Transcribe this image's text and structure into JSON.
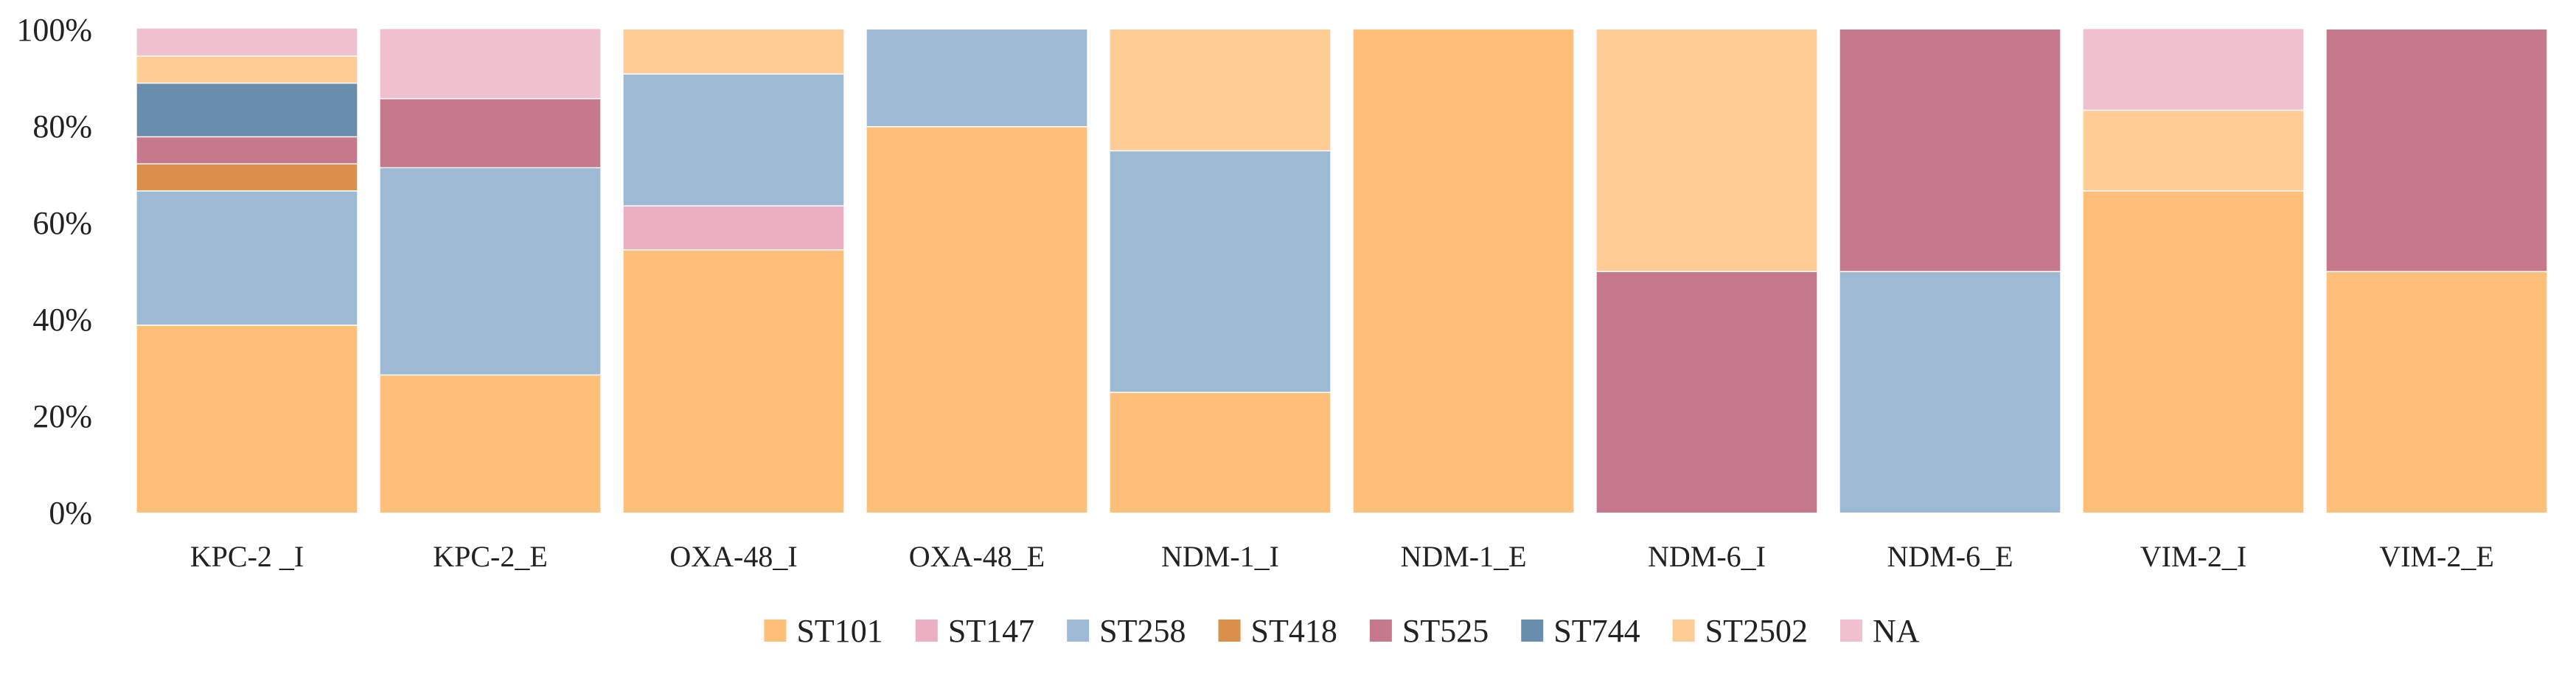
{
  "chart_data": {
    "type": "bar",
    "stacked": true,
    "percent": true,
    "title": "",
    "xlabel": "",
    "ylabel": "",
    "ylim": [
      0,
      100
    ],
    "yticks": [
      "0%",
      "20%",
      "40%",
      "60%",
      "80%",
      "100%"
    ],
    "grid": false,
    "legend": "bottom",
    "categories": [
      "KPC-2 _I",
      "KPC-2_E",
      "OXA-48_I",
      "OXA-48_E",
      "NDM-1_I",
      "NDM-1_E",
      "NDM-6_I",
      "NDM-6_E",
      "VIM-2_I",
      "VIM-2_E"
    ],
    "series": [
      {
        "name": "ST101",
        "color": "#FFBF78",
        "values": [
          38.9,
          28.6,
          54.5,
          80.0,
          25.0,
          100.0,
          0.0,
          0.0,
          66.7,
          50.0
        ]
      },
      {
        "name": "ST147",
        "color": "#EAB0C2",
        "values": [
          0.0,
          0.0,
          9.1,
          0.0,
          0.0,
          0.0,
          0.0,
          0.0,
          0.0,
          0.0
        ]
      },
      {
        "name": "ST258",
        "color": "#9DBAD5",
        "values": [
          27.8,
          42.9,
          27.3,
          20.0,
          50.0,
          0.0,
          0.0,
          50.0,
          0.0,
          0.0
        ]
      },
      {
        "name": "ST418",
        "color": "#D9904A",
        "values": [
          5.6,
          0.0,
          0.0,
          0.0,
          0.0,
          0.0,
          0.0,
          0.0,
          0.0,
          0.0
        ]
      },
      {
        "name": "ST525",
        "color": "#C6788C",
        "values": [
          5.6,
          14.3,
          0.0,
          0.0,
          0.0,
          0.0,
          50.0,
          50.0,
          0.0,
          50.0
        ]
      },
      {
        "name": "ST744",
        "color": "#6A8DAE",
        "values": [
          11.1,
          0.0,
          0.0,
          0.0,
          0.0,
          0.0,
          0.0,
          0.0,
          0.0,
          0.0
        ]
      },
      {
        "name": "ST2502",
        "color": "#FFCC96",
        "values": [
          5.6,
          0.0,
          9.1,
          0.0,
          25.0,
          0.0,
          50.0,
          0.0,
          16.7,
          0.0
        ]
      },
      {
        "name": "NA",
        "color": "#F0C0CE",
        "values": [
          5.6,
          14.3,
          0.0,
          0.0,
          0.0,
          0.0,
          0.0,
          0.0,
          16.7,
          0.0
        ]
      }
    ]
  }
}
